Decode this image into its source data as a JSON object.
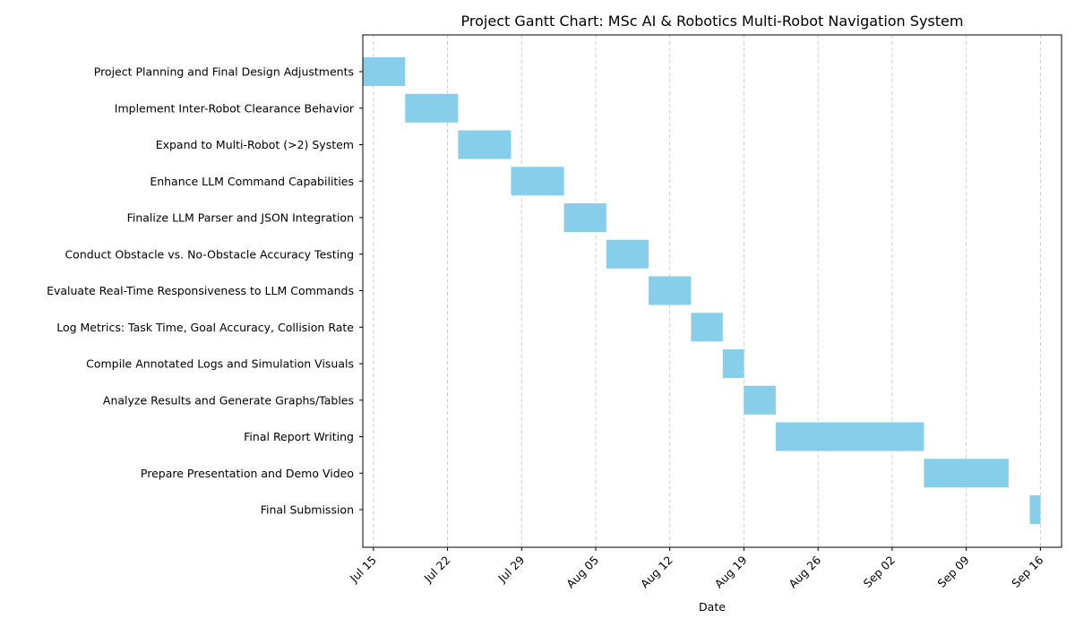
{
  "chart_data": {
    "type": "gantt",
    "title": "Project Gantt Chart: MSc AI & Robotics Multi-Robot Navigation System",
    "xlabel": "Date",
    "ylabel": "",
    "grid": "x-only, dashed",
    "bar_color": "#87CEEB",
    "grid_color": "#c8c8c8",
    "xlim": [
      "2024-07-14",
      "2024-09-18"
    ],
    "x_ticks": [
      {
        "date": "2024-07-15",
        "label": "Jul 15"
      },
      {
        "date": "2024-07-22",
        "label": "Jul 22"
      },
      {
        "date": "2024-07-29",
        "label": "Jul 29"
      },
      {
        "date": "2024-08-05",
        "label": "Aug 05"
      },
      {
        "date": "2024-08-12",
        "label": "Aug 12"
      },
      {
        "date": "2024-08-19",
        "label": "Aug 19"
      },
      {
        "date": "2024-08-26",
        "label": "Aug 26"
      },
      {
        "date": "2024-09-02",
        "label": "Sep 02"
      },
      {
        "date": "2024-09-09",
        "label": "Sep 09"
      },
      {
        "date": "2024-09-16",
        "label": "Sep 16"
      }
    ],
    "tasks": [
      {
        "name": "Project Planning and Final Design Adjustments",
        "start": "2024-07-14",
        "end": "2024-07-18"
      },
      {
        "name": "Implement Inter-Robot Clearance Behavior",
        "start": "2024-07-18",
        "end": "2024-07-23"
      },
      {
        "name": "Expand to Multi-Robot (>2) System",
        "start": "2024-07-23",
        "end": "2024-07-28"
      },
      {
        "name": "Enhance LLM Command Capabilities",
        "start": "2024-07-28",
        "end": "2024-08-02"
      },
      {
        "name": "Finalize LLM Parser and JSON Integration",
        "start": "2024-08-02",
        "end": "2024-08-06"
      },
      {
        "name": "Conduct Obstacle vs. No-Obstacle Accuracy Testing",
        "start": "2024-08-06",
        "end": "2024-08-10"
      },
      {
        "name": "Evaluate Real-Time Responsiveness to LLM Commands",
        "start": "2024-08-10",
        "end": "2024-08-14"
      },
      {
        "name": "Log Metrics: Task Time, Goal Accuracy, Collision Rate",
        "start": "2024-08-14",
        "end": "2024-08-17"
      },
      {
        "name": "Compile Annotated Logs and Simulation Visuals",
        "start": "2024-08-17",
        "end": "2024-08-19"
      },
      {
        "name": "Analyze Results and Generate Graphs/Tables",
        "start": "2024-08-19",
        "end": "2024-08-22"
      },
      {
        "name": "Final Report Writing",
        "start": "2024-08-22",
        "end": "2024-09-05"
      },
      {
        "name": "Prepare Presentation and Demo Video",
        "start": "2024-09-05",
        "end": "2024-09-13"
      },
      {
        "name": "Final Submission",
        "start": "2024-09-15",
        "end": "2024-09-16"
      }
    ]
  }
}
